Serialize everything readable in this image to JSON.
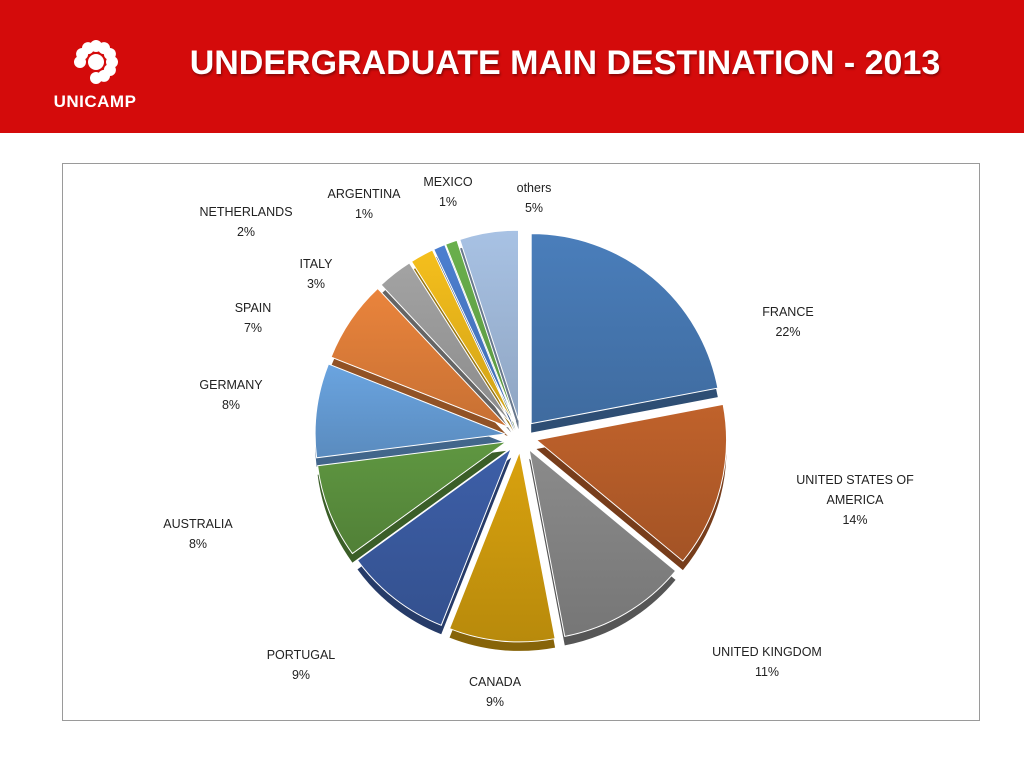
{
  "header": {
    "title": "UNDERGRADUATE  MAIN DESTINATION - 2013",
    "logo_text": "UNICAMP",
    "background_color": "#d40b0b"
  },
  "chart_data": {
    "type": "pie",
    "title": "",
    "slices": [
      {
        "label": "FRANCE",
        "value": 22,
        "display": "22%",
        "color": "#4a7ebb"
      },
      {
        "label": "UNITED STATES OF AMERICA",
        "value": 14,
        "display": "14%",
        "color": "#c0622b"
      },
      {
        "label": "UNITED KINGDOM",
        "value": 11,
        "display": "11%",
        "color": "#8b8b8b"
      },
      {
        "label": "CANADA",
        "value": 9,
        "display": "9%",
        "color": "#d9a20e"
      },
      {
        "label": "PORTUGAL",
        "value": 9,
        "display": "9%",
        "color": "#3d5fa8"
      },
      {
        "label": "AUSTRALIA",
        "value": 8,
        "display": "8%",
        "color": "#5f9741"
      },
      {
        "label": "GERMANY",
        "value": 8,
        "display": "8%",
        "color": "#6aa4e0"
      },
      {
        "label": "SPAIN",
        "value": 7,
        "display": "7%",
        "color": "#ea843c"
      },
      {
        "label": "ITALY",
        "value": 3,
        "display": "3%",
        "color": "#a3a3a3"
      },
      {
        "label": "NETHERLANDS",
        "value": 2,
        "display": "2%",
        "color": "#f5bf1c"
      },
      {
        "label": "ARGENTINA",
        "value": 1,
        "display": "1%",
        "color": "#4c7fd0"
      },
      {
        "label": "MEXICO",
        "value": 1,
        "display": "1%",
        "color": "#6ab04c"
      },
      {
        "label": "others",
        "value": 5,
        "display": "5%",
        "color": "#a8c2e4"
      }
    ],
    "legend": "none",
    "labels_outside_with_leader_lines": true,
    "exploded": true
  }
}
